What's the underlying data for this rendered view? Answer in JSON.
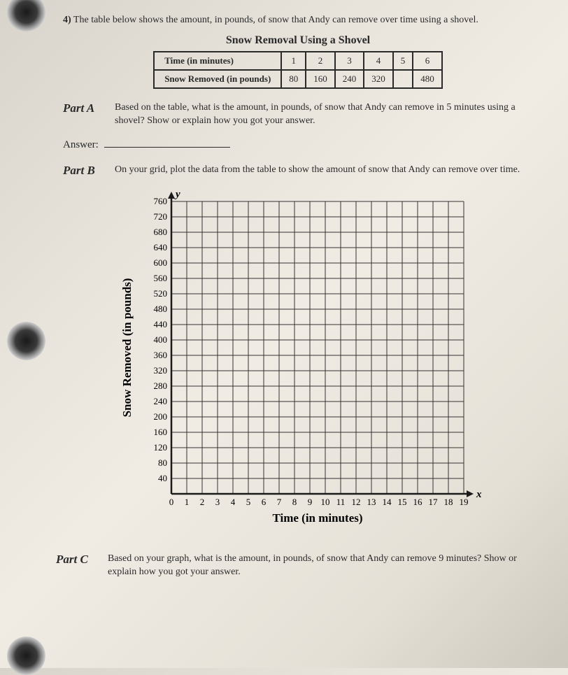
{
  "question_number": "4)",
  "intro_text": "The table below shows the amount, in pounds, of snow that Andy can remove over time using a shovel.",
  "table": {
    "title": "Snow Removal Using a Shovel",
    "row1_header": "Time (in minutes)",
    "row2_header": "Snow Removed (in pounds)",
    "columns": [
      "1",
      "2",
      "3",
      "4",
      "5",
      "6"
    ],
    "values": [
      "80",
      "160",
      "240",
      "320",
      "",
      "480"
    ]
  },
  "partA": {
    "label": "Part A",
    "text": "Based on the table, what is the amount, in pounds, of snow that Andy can remove in 5 minutes using a shovel? Show or explain how you got your answer."
  },
  "answer_label": "Answer:",
  "partB": {
    "label": "Part B",
    "text": "On your grid, plot the data from the table to show the amount of snow that Andy can remove over time."
  },
  "chart": {
    "y_label_var": "y",
    "x_label_var": "x",
    "y_axis_title": "Snow Removed (in pounds)",
    "x_axis_title": "Time (in minutes)",
    "y_ticks": [
      40,
      80,
      120,
      160,
      200,
      240,
      280,
      320,
      360,
      400,
      440,
      480,
      520,
      560,
      600,
      640,
      680,
      720,
      760
    ],
    "x_ticks": [
      0,
      1,
      2,
      3,
      4,
      5,
      6,
      7,
      8,
      9,
      10,
      11,
      12,
      13,
      14,
      15,
      16,
      17,
      18,
      19
    ],
    "grid_color": "#333333",
    "grid_width": 1,
    "axis_color": "#1a1a1a",
    "axis_width": 2.5,
    "tick_fontsize": 13,
    "label_fontsize": 17,
    "background": "transparent",
    "cell_size": 22,
    "plot_width_cells": 19,
    "plot_height_cells": 19
  },
  "partC": {
    "label": "Part C",
    "text": "Based on your graph, what is the amount, in pounds, of snow that Andy can remove 9 minutes? Show or explain how you got your answer."
  }
}
